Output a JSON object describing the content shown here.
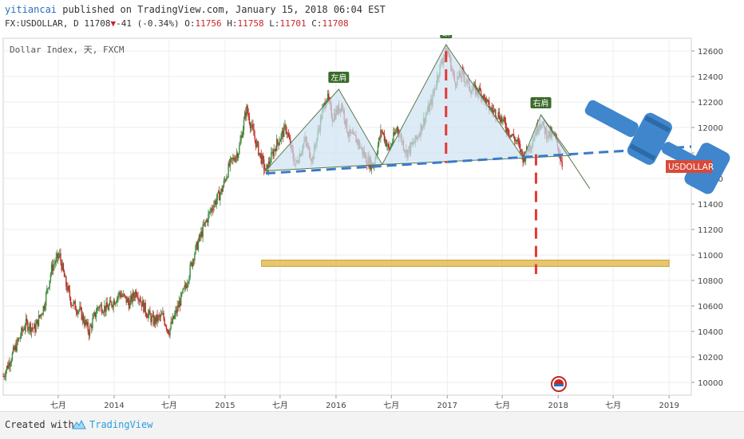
{
  "header": {
    "author": "yitiancai",
    "published_text": "published on TradingView.com, January 15, 2018 06:04 EST",
    "symbol": "FX:USDOLLAR, D",
    "last": "11708",
    "change": "-41 (-0.34%)",
    "o_label": "O:",
    "o": "11756",
    "h_label": "H:",
    "h": "11758",
    "l_label": "L:",
    "l": "11701",
    "c_label": "C:",
    "c": "11708"
  },
  "footer": {
    "created_with": "Created with",
    "brand": "TradingView"
  },
  "colors": {
    "up": "#3c8a3c",
    "down": "#c62828",
    "neckline": "#3a7bc8",
    "target": "#e53935",
    "zone": "#e0b84a",
    "triangle": "#cfe3f3",
    "label_bg": "#3a6b2a",
    "gavel": "#3f86cc"
  },
  "chart_data": {
    "type": "candlestick",
    "title": "Dollar Index, 天, FXCM",
    "price_label": "USDOLLAR",
    "ylim": [
      9900,
      12700
    ],
    "y_ticks": [
      10000,
      10200,
      10400,
      10600,
      10800,
      11000,
      11200,
      11400,
      11600,
      11800,
      12000,
      12200,
      12400,
      12600
    ],
    "x_range": [
      "2013-01-01",
      "2019-03-15"
    ],
    "x_ticks": [
      {
        "label": "七月",
        "date": "2013-07-01"
      },
      {
        "label": "2014",
        "date": "2014-01-01"
      },
      {
        "label": "七月",
        "date": "2014-07-01"
      },
      {
        "label": "2015",
        "date": "2015-01-01"
      },
      {
        "label": "七月",
        "date": "2015-07-01"
      },
      {
        "label": "2016",
        "date": "2016-01-01"
      },
      {
        "label": "七月",
        "date": "2016-07-01"
      },
      {
        "label": "2017",
        "date": "2017-01-01"
      },
      {
        "label": "七月",
        "date": "2017-07-01"
      },
      {
        "label": "2018",
        "date": "2018-01-01"
      },
      {
        "label": "七月",
        "date": "2018-07-01"
      },
      {
        "label": "2019",
        "date": "2019-01-01"
      }
    ],
    "price_path": [
      [
        "2013-01-01",
        10050
      ],
      [
        "2013-02-15",
        10300
      ],
      [
        "2013-03-15",
        10460
      ],
      [
        "2013-04-15",
        10420
      ],
      [
        "2013-05-15",
        10600
      ],
      [
        "2013-06-10",
        10900
      ],
      [
        "2013-07-05",
        11000
      ],
      [
        "2013-07-25",
        10780
      ],
      [
        "2013-08-15",
        10620
      ],
      [
        "2013-09-10",
        10560
      ],
      [
        "2013-10-10",
        10400
      ],
      [
        "2013-11-10",
        10600
      ],
      [
        "2013-12-10",
        10580
      ],
      [
        "2014-01-20",
        10700
      ],
      [
        "2014-02-20",
        10620
      ],
      [
        "2014-03-15",
        10720
      ],
      [
        "2014-04-15",
        10560
      ],
      [
        "2014-05-10",
        10480
      ],
      [
        "2014-06-10",
        10520
      ],
      [
        "2014-06-30",
        10400
      ],
      [
        "2014-07-25",
        10560
      ],
      [
        "2014-08-25",
        10760
      ],
      [
        "2014-09-20",
        11000
      ],
      [
        "2014-10-20",
        11200
      ],
      [
        "2014-11-20",
        11380
      ],
      [
        "2014-12-20",
        11500
      ],
      [
        "2015-01-15",
        11700
      ],
      [
        "2015-02-15",
        11820
      ],
      [
        "2015-03-12",
        12150
      ],
      [
        "2015-04-10",
        11900
      ],
      [
        "2015-05-15",
        11650
      ],
      [
        "2015-06-15",
        11850
      ],
      [
        "2015-07-20",
        12000
      ],
      [
        "2015-08-20",
        11700
      ],
      [
        "2015-09-20",
        11900
      ],
      [
        "2015-10-15",
        11750
      ],
      [
        "2015-11-15",
        12100
      ],
      [
        "2015-12-02",
        12250
      ],
      [
        "2015-12-20",
        12080
      ],
      [
        "2016-01-20",
        12180
      ],
      [
        "2016-02-10",
        11950
      ],
      [
        "2016-03-10",
        11900
      ],
      [
        "2016-04-10",
        11750
      ],
      [
        "2016-05-02",
        11700
      ],
      [
        "2016-05-30",
        11980
      ],
      [
        "2016-06-24",
        11820
      ],
      [
        "2016-07-20",
        12000
      ],
      [
        "2016-08-20",
        11800
      ],
      [
        "2016-09-20",
        11900
      ],
      [
        "2016-10-20",
        12080
      ],
      [
        "2016-11-10",
        12200
      ],
      [
        "2016-12-05",
        12450
      ],
      [
        "2016-12-20",
        12560
      ],
      [
        "2017-01-03",
        12600
      ],
      [
        "2017-01-25",
        12360
      ],
      [
        "2017-02-20",
        12420
      ],
      [
        "2017-03-20",
        12300
      ],
      [
        "2017-04-20",
        12280
      ],
      [
        "2017-05-20",
        12150
      ],
      [
        "2017-06-20",
        12100
      ],
      [
        "2017-07-20",
        11980
      ],
      [
        "2017-08-20",
        11880
      ],
      [
        "2017-09-08",
        11760
      ],
      [
        "2017-10-05",
        11880
      ],
      [
        "2017-11-01",
        12050
      ],
      [
        "2017-11-25",
        11950
      ],
      [
        "2017-12-20",
        11930
      ],
      [
        "2018-01-05",
        11800
      ],
      [
        "2018-01-15",
        11708
      ]
    ],
    "pattern": {
      "left_shoulder_label": "左肩",
      "head_label": "頭",
      "right_shoulder_label": "右肩",
      "triangle_1": [
        [
          "2015-05-15",
          11660
        ],
        [
          "2016-01-10",
          12300
        ],
        [
          "2016-06-01",
          11710
        ]
      ],
      "triangle_2": [
        [
          "2016-06-01",
          11710
        ],
        [
          "2016-12-28",
          12650
        ],
        [
          "2017-09-08",
          11760
        ]
      ],
      "triangle_3": [
        [
          "2017-09-08",
          11760
        ],
        [
          "2017-11-05",
          12100
        ],
        [
          "2018-02-10",
          11780
        ]
      ],
      "neckline": [
        [
          "2015-05-15",
          11640
        ],
        [
          "2019-03-15",
          11850
        ]
      ],
      "right_shoulder_extension": [
        [
          "2017-11-05",
          12100
        ],
        [
          "2018-04-15",
          11520
        ]
      ],
      "head_target_line": [
        [
          "2016-12-28",
          12600
        ],
        [
          "2016-12-28",
          11720
        ]
      ],
      "projection_line": [
        [
          "2017-10-20",
          11790
        ],
        [
          "2017-10-20",
          10850
        ]
      ],
      "target_zone": {
        "x_start": "2015-05-01",
        "x_end": "2019-01-01",
        "y_low": 10910,
        "y_high": 10960
      }
    }
  }
}
